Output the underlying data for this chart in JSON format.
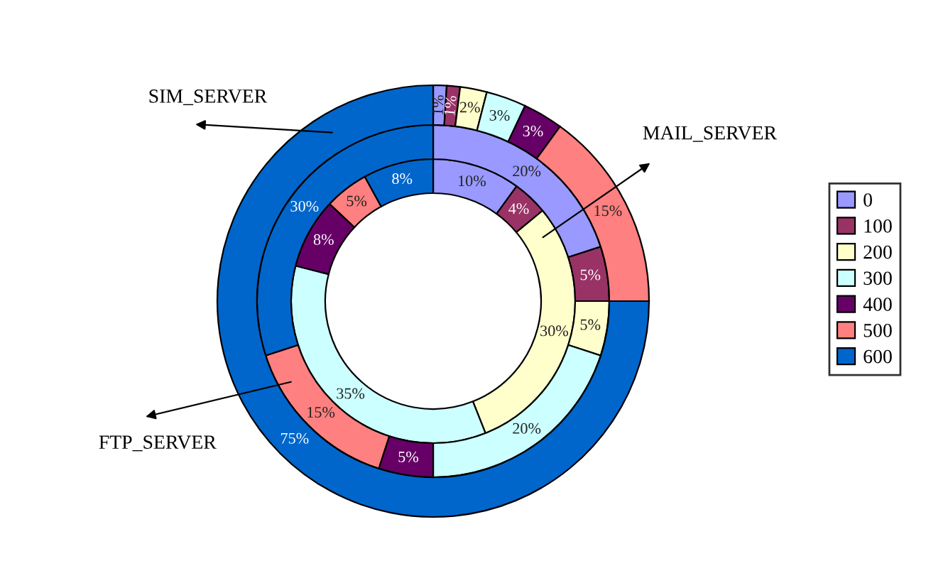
{
  "chart_data": {
    "type": "donut",
    "categories": [
      "0",
      "100",
      "200",
      "300",
      "400",
      "500",
      "600"
    ],
    "colors": [
      "#9999ff",
      "#993366",
      "#ffffcc",
      "#ccffff",
      "#660066",
      "#ff8080",
      "#0066cc"
    ],
    "series": [
      {
        "name": "MAIL_SERVER",
        "values": [
          10,
          4,
          30,
          35,
          8,
          5,
          8
        ],
        "value_labels": [
          "10%",
          "4%",
          "30%",
          "35%",
          "8%",
          "5%",
          "8%"
        ]
      },
      {
        "name": "FTP_SERVER",
        "values": [
          20,
          5,
          5,
          20,
          5,
          15,
          30
        ],
        "value_labels": [
          "20%",
          "5%",
          "5%",
          "20%",
          "5%",
          "15%",
          "30%"
        ]
      },
      {
        "name": "SIM_SERVER",
        "values": [
          1,
          1,
          2,
          3,
          3,
          15,
          75
        ],
        "value_labels": [
          "1%",
          "1%",
          "2%",
          "3%",
          "3%",
          "15%",
          "75%"
        ]
      }
    ],
    "legend": "right"
  }
}
